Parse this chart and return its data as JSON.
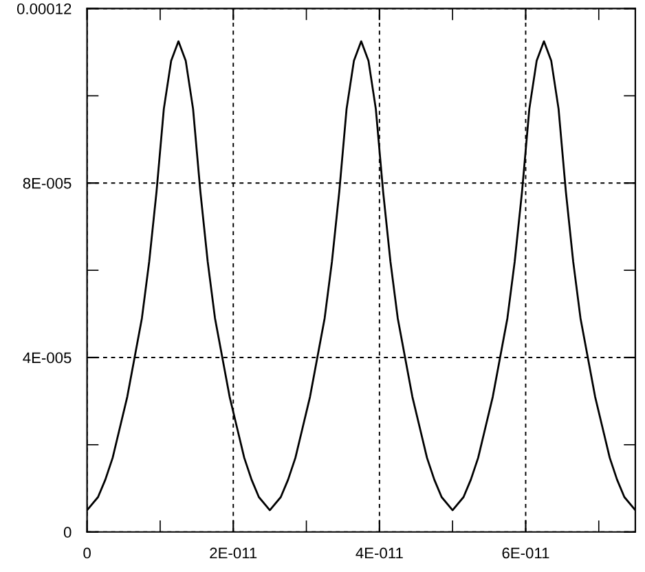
{
  "chart_data": {
    "type": "line",
    "x": [
      0,
      1.5e-12,
      2.5e-12,
      3.5e-12,
      4.5e-12,
      5.5e-12,
      6.5e-12,
      7.5e-12,
      8.5e-12,
      9.5e-12,
      1.05e-11,
      1.15e-11,
      1.25e-11,
      1.35e-11,
      1.45e-11,
      1.55e-11,
      1.65e-11,
      1.75e-11,
      1.85e-11,
      1.95e-11,
      2.05e-11,
      2.15e-11,
      2.25e-11,
      2.35e-11,
      2.5e-11,
      2.65e-11,
      2.75e-11,
      2.85e-11,
      2.95e-11,
      3.05e-11,
      3.15e-11,
      3.25e-11,
      3.35e-11,
      3.45e-11,
      3.55e-11,
      3.65e-11,
      3.75e-11,
      3.85e-11,
      3.95e-11,
      4.05e-11,
      4.15e-11,
      4.25e-11,
      4.35e-11,
      4.45e-11,
      4.55e-11,
      4.65e-11,
      4.75e-11,
      4.85e-11,
      5e-11,
      5.15e-11,
      5.25e-11,
      5.35e-11,
      5.45e-11,
      5.55e-11,
      5.65e-11,
      5.75e-11,
      5.85e-11,
      5.95e-11,
      6.05e-11,
      6.15e-11,
      6.25e-11,
      6.35e-11,
      6.45e-11,
      6.55e-11,
      6.65e-11,
      6.75e-11,
      6.85e-11,
      6.95e-11,
      7.05e-11,
      7.15e-11,
      7.25e-11,
      7.35e-11,
      7.5e-11
    ],
    "series": [
      {
        "color": "#000000",
        "values": [
          5e-06,
          8e-06,
          1.2e-05,
          1.7e-05,
          2.4e-05,
          3.1e-05,
          4e-05,
          4.9e-05,
          6.2e-05,
          7.8e-05,
          9.7e-05,
          0.000108,
          0.0001125,
          0.000108,
          9.7e-05,
          7.8e-05,
          6.2e-05,
          4.9e-05,
          4e-05,
          3.1e-05,
          2.4e-05,
          1.7e-05,
          1.2e-05,
          8e-06,
          5e-06,
          8e-06,
          1.2e-05,
          1.7e-05,
          2.4e-05,
          3.1e-05,
          4e-05,
          4.9e-05,
          6.2e-05,
          7.8e-05,
          9.7e-05,
          0.000108,
          0.0001125,
          0.000108,
          9.7e-05,
          7.8e-05,
          6.2e-05,
          4.9e-05,
          4e-05,
          3.1e-05,
          2.4e-05,
          1.7e-05,
          1.2e-05,
          8e-06,
          5e-06,
          8e-06,
          1.2e-05,
          1.7e-05,
          2.4e-05,
          3.1e-05,
          4e-05,
          4.9e-05,
          6.2e-05,
          7.8e-05,
          9.7e-05,
          0.000108,
          0.0001125,
          0.000108,
          9.7e-05,
          7.8e-05,
          6.2e-05,
          4.9e-05,
          4e-05,
          3.1e-05,
          2.4e-05,
          1.7e-05,
          1.2e-05,
          8e-06,
          5e-06
        ]
      }
    ],
    "xlim": [
      0,
      7.5e-11
    ],
    "xticks": [
      {
        "value": 0,
        "label": "0"
      },
      {
        "value": 1e-11,
        "label": null
      },
      {
        "value": 2e-11,
        "label": "2E-011"
      },
      {
        "value": 3e-11,
        "label": null
      },
      {
        "value": 4e-11,
        "label": "4E-011"
      },
      {
        "value": 5e-11,
        "label": null
      },
      {
        "value": 6e-11,
        "label": "6E-011"
      },
      {
        "value": 7e-11,
        "label": null
      }
    ],
    "ylim": [
      0,
      0.00012
    ],
    "yticks": [
      {
        "value": 0,
        "label": "0"
      },
      {
        "value": 2e-05,
        "label": null
      },
      {
        "value": 4e-05,
        "label": "4E-005"
      },
      {
        "value": 6e-05,
        "label": null
      },
      {
        "value": 8e-05,
        "label": "8E-005"
      },
      {
        "value": 0.0001,
        "label": null
      },
      {
        "value": 0.00012,
        "label": "0.00012"
      }
    ],
    "grid": true,
    "marker": "none",
    "line_style": "solid"
  }
}
